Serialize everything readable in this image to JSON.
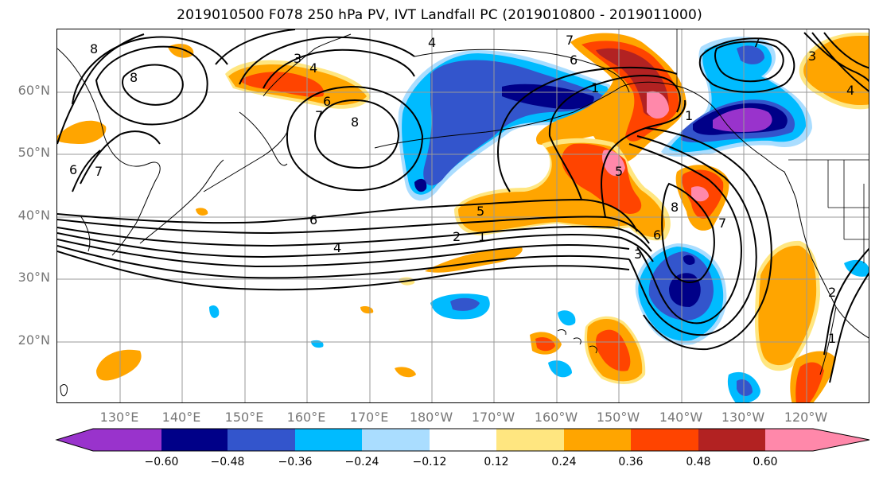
{
  "title": "2019010500 F078 250 hPa PV, IVT Landfall PC (2019010800 - 2019011000)",
  "axes": {
    "lat_labels": [
      "60°N",
      "50°N",
      "40°N",
      "30°N",
      "20°N"
    ],
    "lon_labels": [
      "130°E",
      "140°E",
      "150°E",
      "160°E",
      "170°E",
      "180°W",
      "170°W",
      "160°W",
      "150°W",
      "140°W",
      "130°W",
      "120°W"
    ]
  },
  "colorbar": {
    "tick_labels": [
      "−0.60",
      "−0.48",
      "−0.36",
      "−0.24",
      "−0.12",
      "0.12",
      "0.24",
      "0.36",
      "0.48",
      "0.60"
    ],
    "colors": [
      "#9933CC",
      "#000088",
      "#3355CC",
      "#00BBFF",
      "#AADDFF",
      "#FFFFFF",
      "#FFE680",
      "#FFA500",
      "#FF4400",
      "#B22222",
      "#FF88AA"
    ]
  },
  "contour_labels": [
    "8",
    "8",
    "6",
    "7",
    "3",
    "4",
    "4",
    "7",
    "6",
    "7",
    "7",
    "6",
    "8",
    "6",
    "4",
    "5",
    "2",
    "1",
    "5",
    "8",
    "6",
    "3",
    "1",
    "7",
    "4",
    "3",
    "2",
    "1",
    "1"
  ]
}
